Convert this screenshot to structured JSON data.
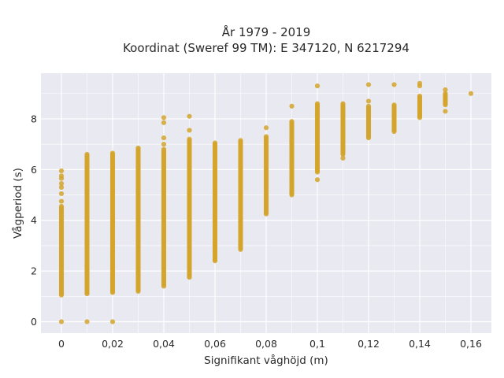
{
  "chart_data": {
    "type": "scatter",
    "title_lines": [
      "År 1979 - 2019",
      "Koordinat (Sweref 99 TM): E 347120, N 6217294"
    ],
    "xlabel": "Signifikant våghöjd (m)",
    "ylabel": "Vågperiod (s)",
    "xlim": [
      -0.008,
      0.168
    ],
    "ylim": [
      -0.45,
      9.8
    ],
    "x_ticks": [
      0,
      0.02,
      0.04,
      0.06,
      0.08,
      0.1,
      0.12,
      0.14,
      0.16
    ],
    "x_tick_labels": [
      "0",
      "0,02",
      "0,04",
      "0,06",
      "0,08",
      "0,1",
      "0,12",
      "0,14",
      "0,16"
    ],
    "x_minor_ticks": [
      0.01,
      0.03,
      0.05,
      0.07,
      0.09,
      0.11,
      0.13,
      0.15
    ],
    "y_ticks": [
      0,
      2,
      4,
      6,
      8
    ],
    "y_tick_labels": [
      "0",
      "2",
      "4",
      "6",
      "8"
    ],
    "y_minor_ticks": [
      1,
      3,
      5,
      7,
      9
    ],
    "grid": true,
    "background_color": "#e9e9f1",
    "marker_color": "#d4a52a",
    "series": [
      {
        "values_hint": "vertical bands of points: each column spans y_min..y_max, plus isolated outliers",
        "columns": [
          {
            "x": 0.0,
            "y_min": 1.05,
            "y_max": 4.55,
            "extra_y": [
              0,
              4.75,
              5.05,
              5.3,
              5.45,
              5.65,
              5.75,
              5.95
            ]
          },
          {
            "x": 0.01,
            "y_min": 1.1,
            "y_max": 6.6,
            "extra_y": [
              0
            ]
          },
          {
            "x": 0.02,
            "y_min": 1.15,
            "y_max": 6.65,
            "extra_y": [
              0
            ]
          },
          {
            "x": 0.03,
            "y_min": 1.2,
            "y_max": 6.85,
            "extra_y": []
          },
          {
            "x": 0.04,
            "y_min": 1.4,
            "y_max": 6.8,
            "extra_y": [
              7.0,
              7.25,
              7.85,
              8.05
            ]
          },
          {
            "x": 0.05,
            "y_min": 1.75,
            "y_max": 7.2,
            "extra_y": [
              7.55,
              8.1
            ]
          },
          {
            "x": 0.06,
            "y_min": 2.4,
            "y_max": 7.05,
            "extra_y": []
          },
          {
            "x": 0.07,
            "y_min": 2.85,
            "y_max": 7.15,
            "extra_y": []
          },
          {
            "x": 0.08,
            "y_min": 4.25,
            "y_max": 7.3,
            "extra_y": [
              7.65
            ]
          },
          {
            "x": 0.09,
            "y_min": 5.0,
            "y_max": 7.9,
            "extra_y": [
              8.5
            ]
          },
          {
            "x": 0.1,
            "y_min": 5.9,
            "y_max": 8.6,
            "extra_y": [
              5.6,
              9.3
            ]
          },
          {
            "x": 0.11,
            "y_min": 6.6,
            "y_max": 8.6,
            "extra_y": [
              6.45
            ]
          },
          {
            "x": 0.12,
            "y_min": 7.25,
            "y_max": 8.5,
            "extra_y": [
              8.7,
              9.35
            ]
          },
          {
            "x": 0.13,
            "y_min": 7.5,
            "y_max": 8.55,
            "extra_y": [
              9.35
            ]
          },
          {
            "x": 0.14,
            "y_min": 8.05,
            "y_max": 8.9,
            "extra_y": [
              9.3,
              9.4
            ]
          },
          {
            "x": 0.15,
            "y_min": 8.55,
            "y_max": 9.0,
            "extra_y": [
              8.3,
              9.15
            ]
          },
          {
            "x": 0.16,
            "y_min": 9.0,
            "y_max": 9.0,
            "extra_y": []
          }
        ]
      }
    ]
  }
}
